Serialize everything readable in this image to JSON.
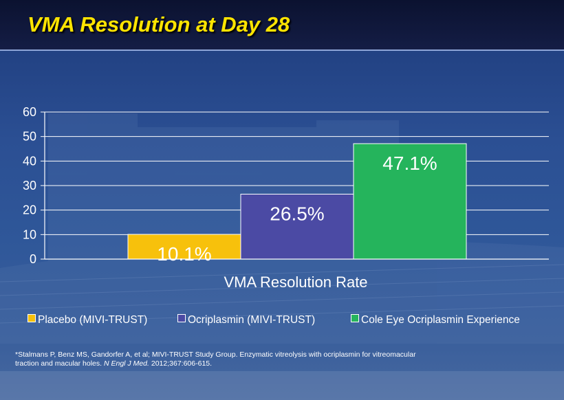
{
  "slide": {
    "title": "VMA Resolution at Day 28"
  },
  "chart_data": {
    "type": "bar",
    "categories": [
      "Placebo (MIVI-TRUST)",
      "Ocriplasmin (MIVI-TRUST)",
      "Cole Eye Ocriplasmin Experience"
    ],
    "values": [
      10.1,
      26.5,
      47.1
    ],
    "data_labels": [
      "10.1%",
      "26.5%",
      "47.1%"
    ],
    "xlabel": "VMA Resolution Rate",
    "ylabel": "",
    "ylim": [
      0,
      60
    ],
    "yticks": [
      "0",
      "10",
      "20",
      "30",
      "40",
      "50",
      "60"
    ],
    "grid": true,
    "legend_position": "bottom",
    "colors": [
      "#f7c10c",
      "#4b4aa4",
      "#25b45c"
    ]
  },
  "legend": {
    "items": [
      {
        "label": "Placebo (MIVI-TRUST)",
        "color": "#f7c10c"
      },
      {
        "label": "Ocriplasmin (MIVI-TRUST)",
        "color": "#4b4aa4"
      },
      {
        "label": "Cole Eye Ocriplasmin Experience",
        "color": "#25b45c"
      }
    ]
  },
  "citation": {
    "text": "*Stalmans P, Benz MS, Gandorfer A, et al; MIVI-TRUST Study Group. Enzymatic vitreolysis with ocriplasmin for vitreomacular traction and macular holes.",
    "journal": "N Engl J Med.",
    "ref": "2012;367:606-615."
  }
}
